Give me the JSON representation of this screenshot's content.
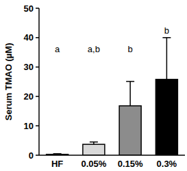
{
  "chart_data": {
    "type": "bar",
    "y_label": "Serum TMAO (µM)",
    "categories": [
      "HF",
      "0.05%",
      "0.15%",
      "0.3%"
    ],
    "values": [
      0.3,
      3.7,
      16.8,
      25.8
    ],
    "errors": [
      0.2,
      0.8,
      8.3,
      14.2
    ],
    "annotations": [
      "a",
      "a,b",
      "b",
      "b"
    ],
    "colors": [
      "#ffffff",
      "#d9d9d9",
      "#8c8c8c",
      "#000000"
    ],
    "ylim": [
      0,
      50
    ],
    "yticks": [
      0,
      10,
      20,
      30,
      40,
      50
    ],
    "grid": false
  }
}
